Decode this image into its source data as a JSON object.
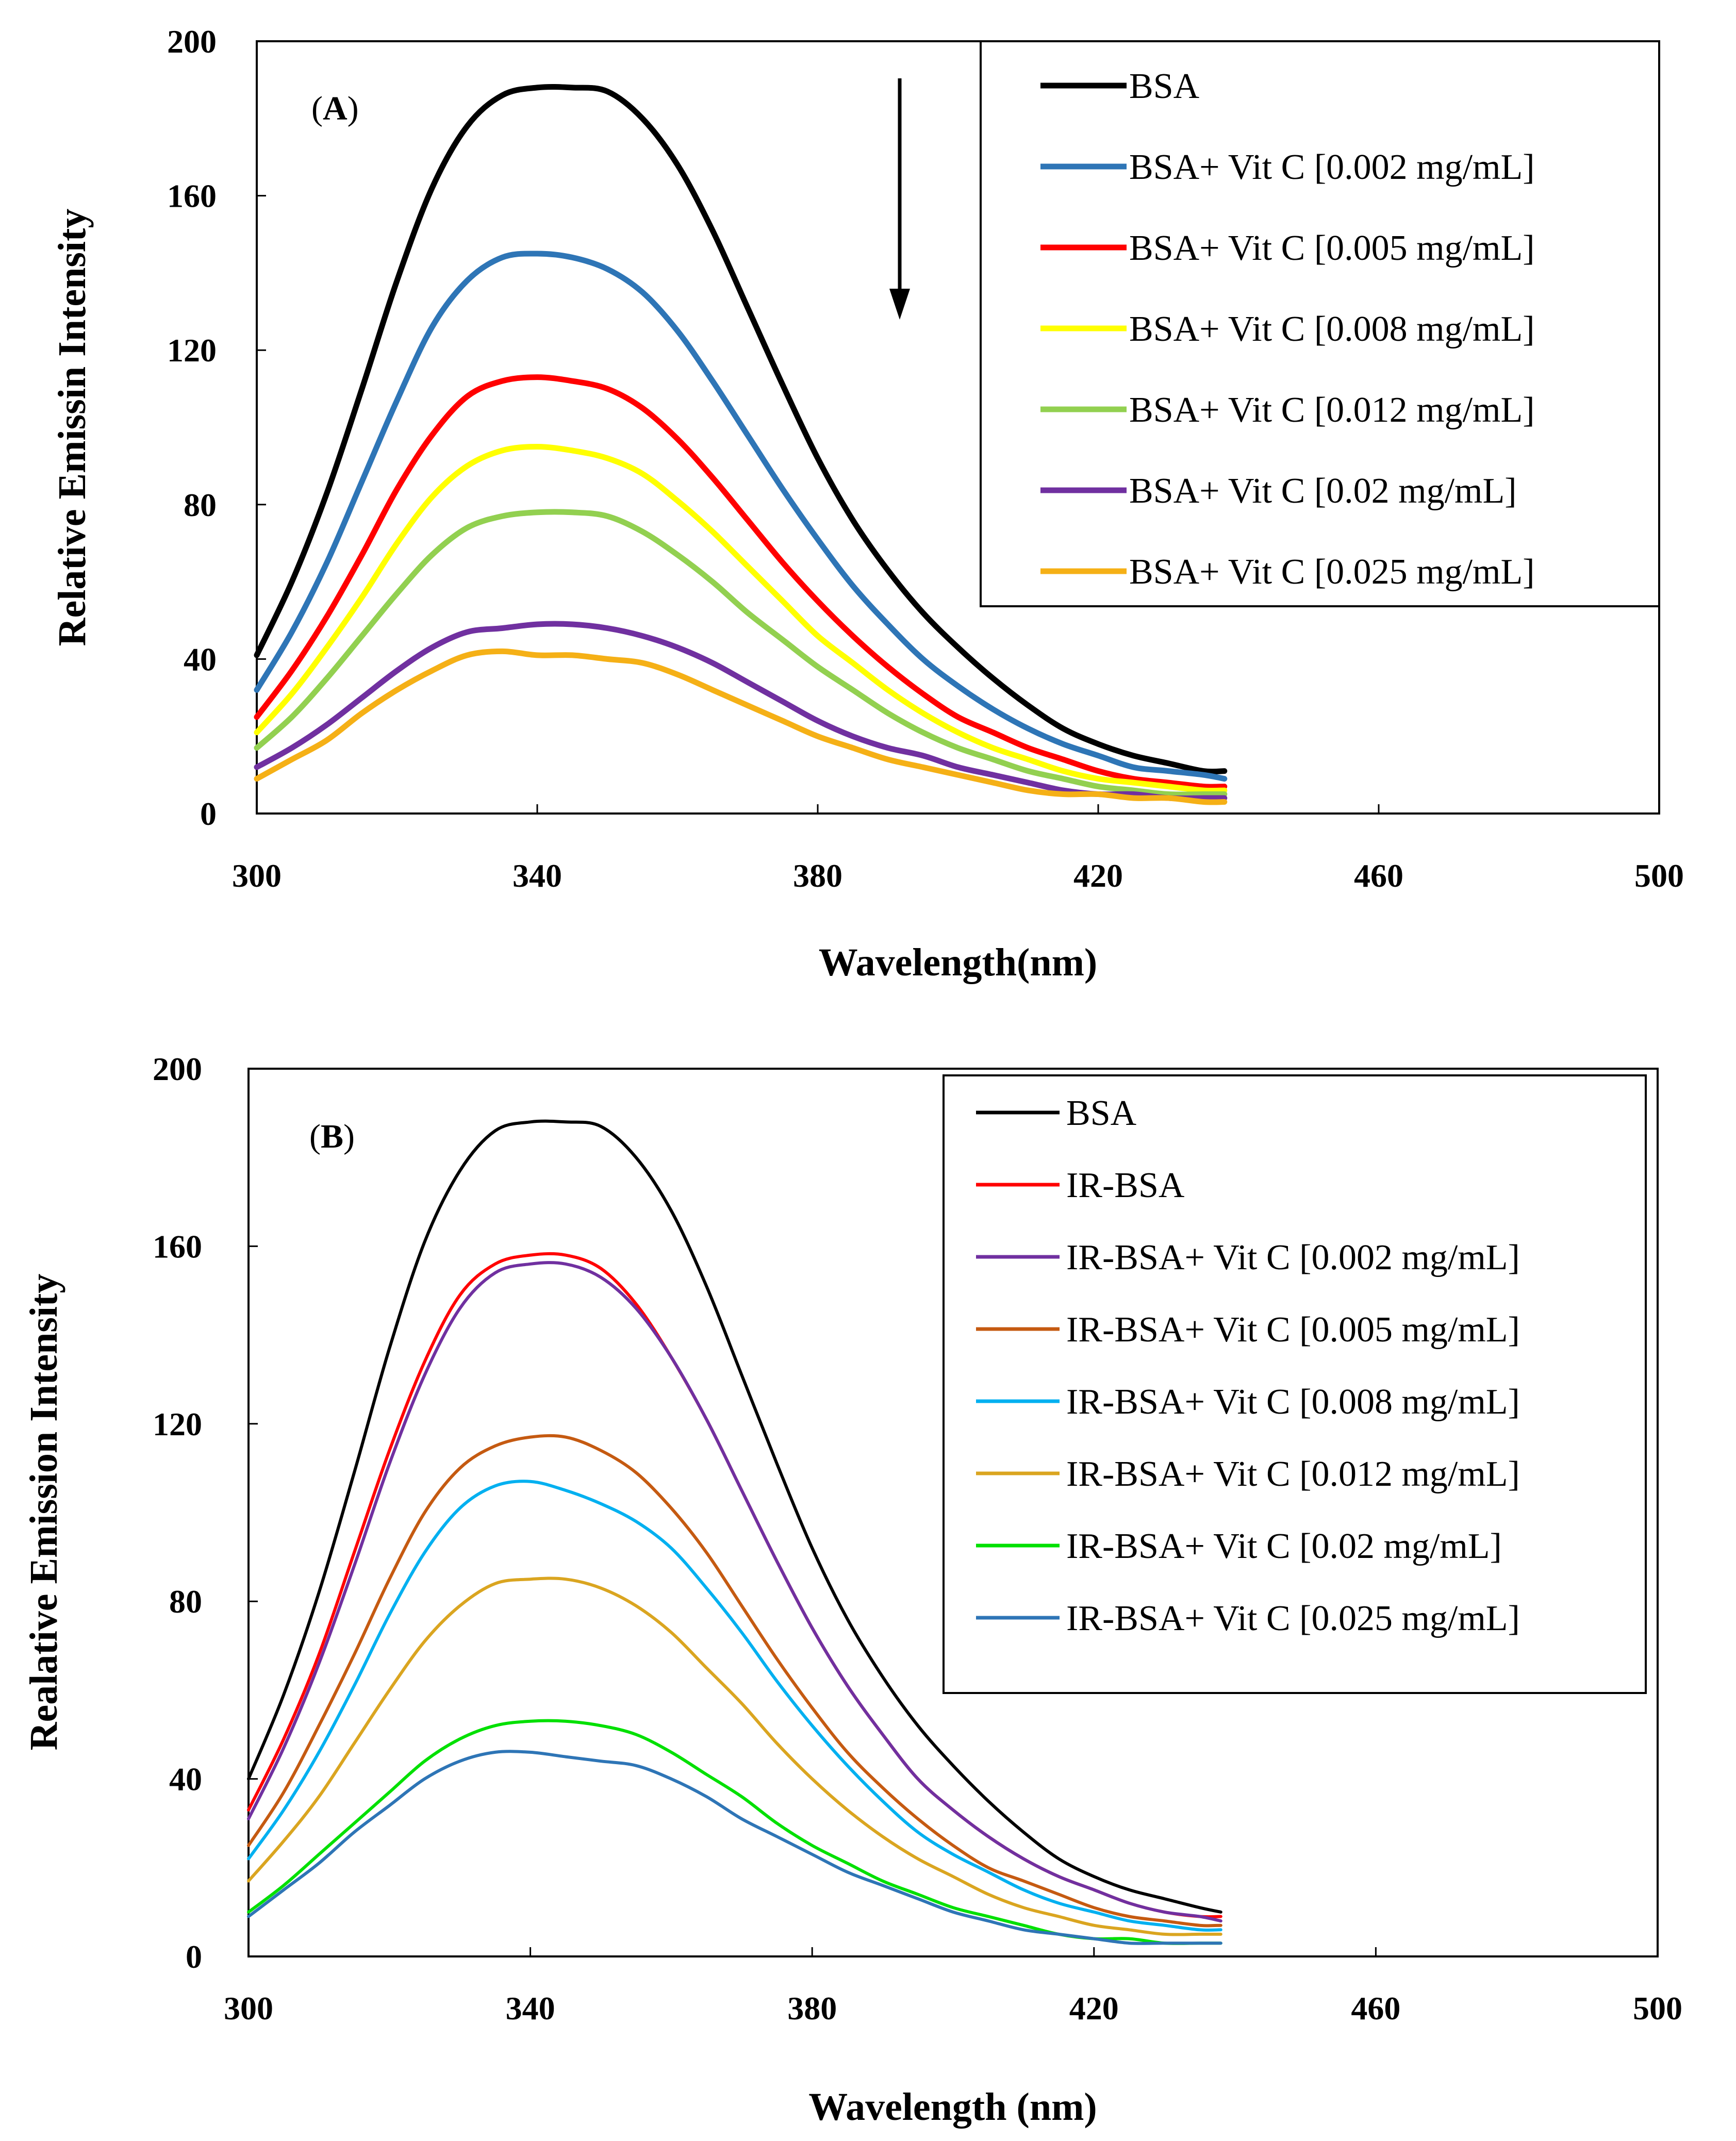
{
  "chart_data": [
    {
      "type": "line",
      "panel_label": "A",
      "xlabel": "Wavelength(nm)",
      "ylabel": "Relative Emissin Intensity",
      "xlim": [
        300,
        500
      ],
      "ylim": [
        0,
        200
      ],
      "xticks": [
        "300",
        "340",
        "380",
        "420",
        "460",
        "500"
      ],
      "yticks": [
        "0",
        "40",
        "80",
        "120",
        "160",
        "200"
      ],
      "legend_position": "top-right",
      "annotation": "downward arrow indicating decreasing intensity",
      "x": [
        300,
        305,
        310,
        315,
        320,
        325,
        330,
        335,
        340,
        345,
        350,
        355,
        360,
        365,
        370,
        375,
        380,
        385,
        390,
        395,
        400,
        405,
        410,
        415,
        420,
        425,
        430,
        435,
        438
      ],
      "series": [
        {
          "name": "BSA",
          "color": "#000000",
          "peak": 188,
          "peak_x": 345,
          "start": 41,
          "end": 11,
          "values": [
            41,
            60,
            83,
            110,
            138,
            162,
            178,
            186,
            188,
            188,
            187,
            180,
            168,
            151,
            131,
            111,
            92,
            76,
            63,
            52,
            43,
            35,
            28,
            22,
            18,
            15,
            13,
            11,
            11
          ]
        },
        {
          "name": "BSA+ Vit C [0.002 mg/mL]",
          "color": "#2E75B6",
          "peak": 145,
          "peak_x": 342,
          "start": 32,
          "end": 9,
          "values": [
            32,
            47,
            65,
            86,
            107,
            126,
            138,
            144,
            145,
            144,
            141,
            135,
            125,
            112,
            98,
            84,
            71,
            59,
            49,
            40,
            33,
            27,
            22,
            18,
            15,
            12,
            11,
            10,
            9
          ]
        },
        {
          "name": "BSA+ Vit C [0.005 mg/mL]",
          "color": "#FF0000",
          "peak": 113,
          "peak_x": 343,
          "start": 25,
          "end": 7,
          "values": [
            25,
            37,
            51,
            67,
            84,
            98,
            108,
            112,
            113,
            112,
            110,
            105,
            97,
            87,
            76,
            65,
            55,
            46,
            38,
            31,
            25,
            21,
            17,
            14,
            11,
            9,
            8,
            7,
            7
          ]
        },
        {
          "name": "BSA+ Vit C [0.008 mg/mL]",
          "color": "#FFFF00",
          "peak": 95,
          "peak_x": 343,
          "start": 21,
          "end": 6,
          "values": [
            21,
            31,
            43,
            56,
            70,
            82,
            90,
            94,
            95,
            94,
            92,
            88,
            81,
            73,
            64,
            55,
            46,
            39,
            32,
            26,
            21,
            17,
            14,
            11,
            9,
            8,
            7,
            6,
            6
          ]
        },
        {
          "name": "BSA+ Vit C [0.012 mg/mL]",
          "color": "#92D050",
          "peak": 78,
          "peak_x": 342,
          "start": 17,
          "end": 5,
          "values": [
            17,
            25,
            35,
            46,
            57,
            67,
            74,
            77,
            78,
            78,
            77,
            73,
            67,
            60,
            52,
            45,
            38,
            32,
            26,
            21,
            17,
            14,
            11,
            9,
            7,
            6,
            5,
            5,
            5
          ]
        },
        {
          "name": "BSA+ Vit C [0.02 mg/mL]",
          "color": "#7030A0",
          "peak": 49,
          "peak_x": 344,
          "start": 12,
          "end": 4,
          "values": [
            12,
            17,
            23,
            30,
            37,
            43,
            47,
            48,
            49,
            49,
            48,
            46,
            43,
            39,
            34,
            29,
            24,
            20,
            17,
            15,
            12,
            10,
            8,
            6,
            5,
            5,
            4,
            4,
            4
          ]
        },
        {
          "name": "BSA+ Vit C [0.025 mg/mL]",
          "color": "#F5B016",
          "peak": 42,
          "peak_x": 338,
          "start": 9,
          "end": 3,
          "values": [
            9,
            14,
            19,
            26,
            32,
            37,
            41,
            42,
            41,
            41,
            40,
            39,
            36,
            32,
            28,
            24,
            20,
            17,
            14,
            12,
            10,
            8,
            6,
            5,
            5,
            4,
            4,
            3,
            3
          ]
        }
      ]
    },
    {
      "type": "line",
      "panel_label": "B",
      "xlabel": "Wavelength (nm)",
      "ylabel": "Realative Emission Intensity",
      "xlim": [
        300,
        500
      ],
      "ylim": [
        0,
        200
      ],
      "xticks": [
        "300",
        "340",
        "380",
        "420",
        "460",
        "500"
      ],
      "yticks": [
        "0",
        "40",
        "80",
        "120",
        "160",
        "200"
      ],
      "legend_position": "top-right",
      "x": [
        300,
        305,
        310,
        315,
        320,
        325,
        330,
        335,
        340,
        345,
        350,
        355,
        360,
        365,
        370,
        375,
        380,
        385,
        390,
        395,
        400,
        405,
        410,
        415,
        420,
        425,
        430,
        435,
        438
      ],
      "series": [
        {
          "name": "BSA",
          "color": "#000000",
          "values": [
            40,
            59,
            82,
            109,
            137,
            161,
            177,
            186,
            188,
            188,
            187,
            180,
            168,
            151,
            131,
            111,
            92,
            76,
            63,
            52,
            43,
            35,
            28,
            22,
            18,
            15,
            13,
            11,
            10
          ]
        },
        {
          "name": "IR-BSA",
          "color": "#FF0000",
          "values": [
            33,
            49,
            68,
            91,
            114,
            134,
            149,
            156,
            158,
            158,
            155,
            147,
            135,
            121,
            105,
            89,
            74,
            61,
            50,
            40,
            33,
            27,
            22,
            18,
            15,
            12,
            10,
            9,
            9
          ]
        },
        {
          "name": "IR-BSA+ Vit C [0.002 mg/mL]",
          "color": "#7030A0",
          "values": [
            31,
            47,
            66,
            88,
            111,
            131,
            146,
            154,
            156,
            156,
            153,
            146,
            135,
            121,
            105,
            89,
            74,
            61,
            50,
            40,
            33,
            27,
            22,
            18,
            15,
            12,
            10,
            9,
            8
          ]
        },
        {
          "name": "IR-BSA+ Vit C [0.005 mg/mL]",
          "color": "#C55A11",
          "values": [
            25,
            37,
            52,
            68,
            85,
            100,
            110,
            115,
            117,
            117,
            114,
            109,
            101,
            91,
            79,
            67,
            56,
            46,
            38,
            31,
            25,
            20,
            17,
            14,
            11,
            9,
            8,
            7,
            7
          ]
        },
        {
          "name": "IR-BSA+ Vit C [0.008 mg/mL]",
          "color": "#00B0F0",
          "values": [
            22,
            33,
            46,
            61,
            77,
            91,
            101,
            106,
            107,
            105,
            102,
            98,
            92,
            83,
            73,
            62,
            52,
            43,
            35,
            28,
            23,
            19,
            15,
            12,
            10,
            8,
            7,
            6,
            6
          ]
        },
        {
          "name": "IR-BSA+ Vit C [0.012 mg/mL]",
          "color": "#DAA520",
          "values": [
            17,
            26,
            36,
            48,
            60,
            71,
            79,
            84,
            85,
            85,
            83,
            79,
            73,
            65,
            57,
            48,
            40,
            33,
            27,
            22,
            18,
            14,
            11,
            9,
            7,
            6,
            5,
            5,
            5
          ]
        },
        {
          "name": "IR-BSA+ Vit C [0.02 mg/mL]",
          "color": "#00E000",
          "values": [
            10,
            16,
            23,
            30,
            37,
            44,
            49,
            52,
            53,
            53,
            52,
            50,
            46,
            41,
            36,
            30,
            25,
            21,
            17,
            14,
            11,
            9,
            7,
            5,
            4,
            4,
            3,
            3,
            3
          ]
        },
        {
          "name": "IR-BSA+ Vit C [0.025 mg/mL]",
          "color": "#2E75B6",
          "values": [
            9,
            15,
            21,
            28,
            34,
            40,
            44,
            46,
            46,
            45,
            44,
            43,
            40,
            36,
            31,
            27,
            23,
            19,
            16,
            13,
            10,
            8,
            6,
            5,
            4,
            3,
            3,
            3,
            3
          ]
        }
      ]
    }
  ]
}
